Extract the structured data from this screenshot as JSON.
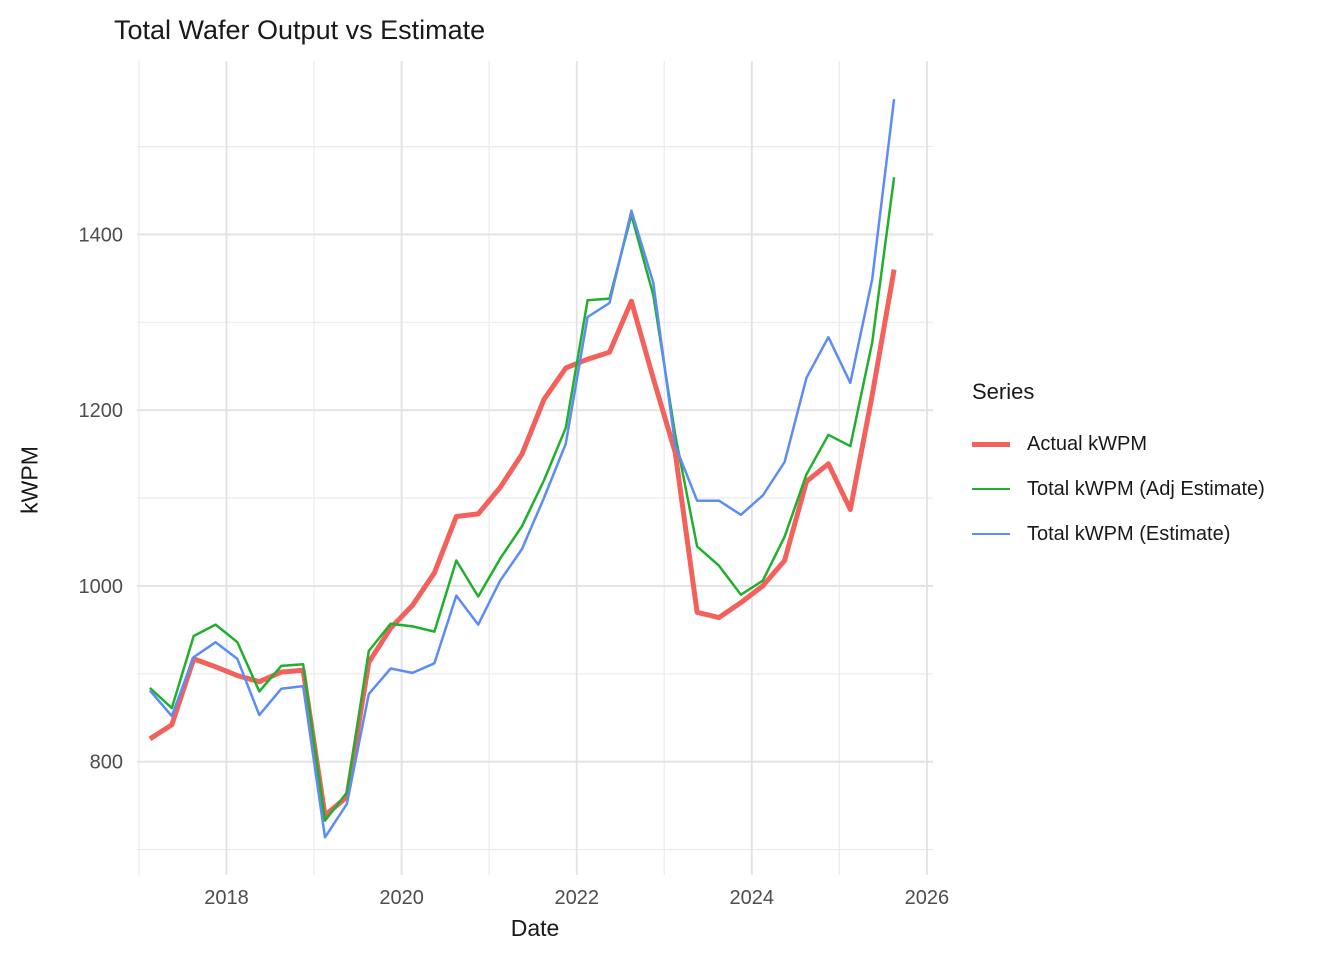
{
  "chart_data": {
    "type": "line",
    "title": "Total Wafer Output vs Estimate",
    "xlabel": "Date",
    "ylabel": "kWPM",
    "legend_title": "Series",
    "legend_position": "right",
    "grid": true,
    "x_tick_labels": [
      "2018",
      "2020",
      "2022",
      "2024",
      "2026"
    ],
    "x_minor_years": [
      2017,
      2019,
      2021,
      2023,
      2025
    ],
    "y_tick_labels": [
      "800",
      "1000",
      "1200",
      "1400"
    ],
    "y_minor_values": [
      700,
      900,
      1100,
      1300,
      1500
    ],
    "xlim": [
      2016.97,
      2026.03
    ],
    "ylim": [
      671,
      1597
    ],
    "x": [
      "2017-02",
      "2017-05",
      "2017-08",
      "2017-11",
      "2018-02",
      "2018-05",
      "2018-08",
      "2018-11",
      "2019-02",
      "2019-05",
      "2019-08",
      "2019-11",
      "2020-02",
      "2020-05",
      "2020-08",
      "2020-11",
      "2021-02",
      "2021-05",
      "2021-08",
      "2021-11",
      "2022-02",
      "2022-05",
      "2022-08",
      "2022-11",
      "2023-02",
      "2023-05",
      "2023-08",
      "2023-11",
      "2024-02",
      "2024-05",
      "2024-08",
      "2024-11",
      "2025-02",
      "2025-05",
      "2025-08"
    ],
    "series": [
      {
        "name": "Actual kWPM",
        "color": "#F2615C",
        "values": [
          826,
          842,
          917,
          908,
          898,
          891,
          902,
          904,
          739,
          760,
          913,
          952,
          978,
          1015,
          1079,
          1082,
          1112,
          1150,
          1212,
          1248,
          1258,
          1266,
          1324,
          1236,
          1152,
          970,
          964,
          981,
          1000,
          1029,
          1119,
          1139,
          1087,
          1217,
          1360
        ]
      },
      {
        "name": "Total kWPM (Adj Estimate)",
        "color": "#20B02D",
        "values": [
          884,
          861,
          943,
          956,
          936,
          880,
          909,
          911,
          733,
          765,
          926,
          957,
          954,
          948,
          1029,
          988,
          1031,
          1068,
          1120,
          1180,
          1325,
          1327,
          1422,
          1331,
          1172,
          1045,
          1023,
          990,
          1006,
          1056,
          1127,
          1172,
          1159,
          1277,
          1465
        ]
      },
      {
        "name": "Total kWPM (Estimate)",
        "color": "#5D8CF5",
        "values": [
          881,
          852,
          919,
          936,
          917,
          853,
          883,
          886,
          714,
          752,
          877,
          906,
          901,
          912,
          989,
          956,
          1006,
          1042,
          1100,
          1162,
          1306,
          1322,
          1427,
          1345,
          1160,
          1097,
          1097,
          1081,
          1103,
          1141,
          1237,
          1283,
          1231,
          1349,
          1554
        ]
      }
    ],
    "colors": {
      "background": "#FFFFFF",
      "grid_major": "#E2E2E2",
      "grid_minor": "#EBEBEB",
      "tick_label": "#4D4D4D",
      "text": "#191919"
    }
  }
}
